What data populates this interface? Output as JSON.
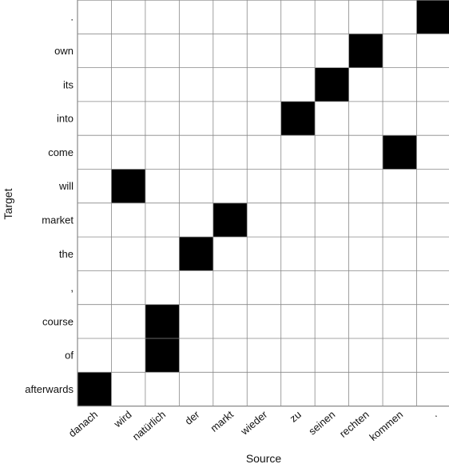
{
  "chart_data": {
    "type": "heatmap",
    "xlabel": "Source",
    "ylabel": "Target",
    "x_tokens": [
      "danach",
      "wird",
      "natürlich",
      "der",
      "markt",
      "wieder",
      "zu",
      "seinen",
      "rechten",
      "kommen",
      "."
    ],
    "y_tokens": [
      ".",
      "own",
      "its",
      "into",
      "come",
      "will",
      "market",
      "the",
      ",",
      "course",
      "of",
      "afterwards"
    ],
    "filled_color": "#000000",
    "empty_color": "#ffffff",
    "cells": [
      {
        "target": ".",
        "source": "."
      },
      {
        "target": "own",
        "source": "rechten"
      },
      {
        "target": "its",
        "source": "seinen"
      },
      {
        "target": "into",
        "source": "zu"
      },
      {
        "target": "come",
        "source": "kommen"
      },
      {
        "target": "will",
        "source": "wird"
      },
      {
        "target": "market",
        "source": "markt"
      },
      {
        "target": "the",
        "source": "der"
      },
      {
        "target": "course",
        "source": "natürlich"
      },
      {
        "target": "of",
        "source": "natürlich"
      },
      {
        "target": "afterwards",
        "source": "danach"
      }
    ]
  }
}
